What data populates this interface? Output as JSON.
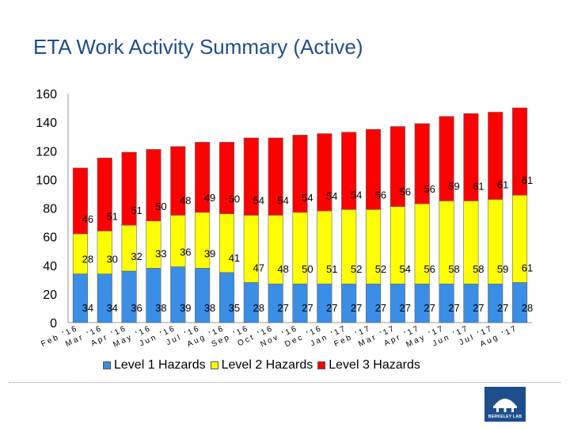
{
  "title": "ETA Work Activity Summary (Active)",
  "chart_data": {
    "type": "bar",
    "stacked": true,
    "categories": [
      "Feb '16",
      "Mar '16",
      "Apr '16",
      "May '16",
      "Jun '16",
      "Jul '16",
      "Aug '16",
      "Sep '16",
      "Oct '16",
      "Nov '16",
      "Dec '16",
      "Jan '17",
      "Feb '17",
      "Mar '17",
      "Apr '17",
      "May '17",
      "Jun '17",
      "Jul '17",
      "Aug '17"
    ],
    "series": [
      {
        "name": "Level 1 Hazards",
        "color": "#3a8ee6",
        "values": [
          34,
          34,
          36,
          38,
          39,
          38,
          35,
          28,
          27,
          27,
          27,
          27,
          27,
          27,
          27,
          27,
          27,
          27,
          28
        ]
      },
      {
        "name": "Level 2 Hazards",
        "color": "#ffff00",
        "values": [
          28,
          30,
          32,
          33,
          36,
          39,
          41,
          47,
          48,
          50,
          51,
          52,
          52,
          54,
          56,
          58,
          58,
          59,
          61
        ]
      },
      {
        "name": "Level 3 Hazards",
        "color": "#ff0000",
        "values": [
          46,
          51,
          51,
          50,
          48,
          49,
          50,
          54,
          54,
          54,
          54,
          54,
          56,
          56,
          56,
          59,
          61,
          61,
          61
        ]
      }
    ],
    "yticks": [
      0,
      20,
      40,
      60,
      80,
      100,
      120,
      140,
      160
    ],
    "ylim": [
      0,
      160
    ],
    "legend_position": "bottom"
  },
  "logo": {
    "label": "BERKELEY LAB",
    "color": "#1f4e8c"
  }
}
